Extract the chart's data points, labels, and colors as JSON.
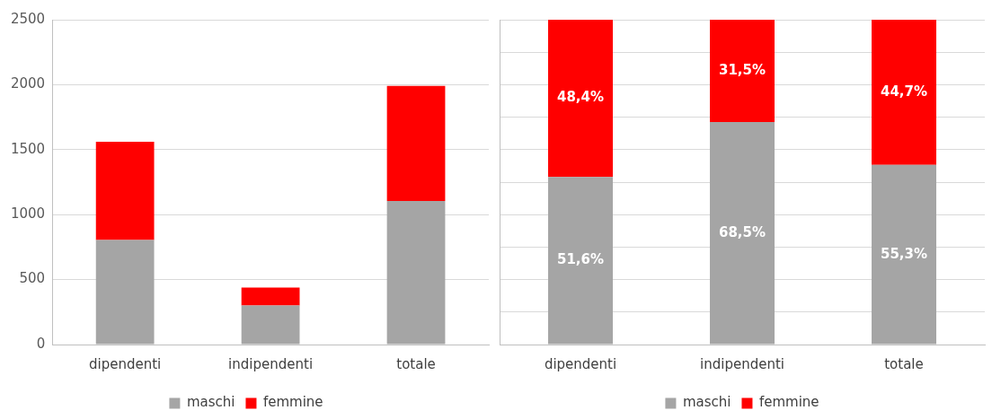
{
  "chart_data": [
    {
      "type": "bar",
      "categories": [
        "dipendenti",
        "indipendenti",
        "totale"
      ],
      "stacked": true,
      "series": [
        {
          "name": "maschi",
          "color": "#a5a5a5",
          "values": [
            805,
            300,
            1105
          ]
        },
        {
          "name": "femmine",
          "color": "#ff0000",
          "values": [
            755,
            138,
            885
          ]
        }
      ],
      "ylim": [
        0,
        2500
      ],
      "yticks": [
        0,
        500,
        1000,
        1500,
        2000,
        2500
      ],
      "grid": "y",
      "legend": "bottom"
    },
    {
      "type": "bar",
      "categories": [
        "dipendenti",
        "indipendenti",
        "totale"
      ],
      "stacked": true,
      "series": [
        {
          "name": "maschi",
          "color": "#a5a5a5",
          "values": [
            51.6,
            68.5,
            55.3
          ],
          "value_labels": [
            "51,6%",
            "68,5%",
            "55,3%"
          ]
        },
        {
          "name": "femmine",
          "color": "#ff0000",
          "values": [
            48.4,
            31.5,
            44.7
          ],
          "value_labels": [
            "48,4%",
            "31,5%",
            "44,7%"
          ]
        }
      ],
      "ylim": [
        0,
        100
      ],
      "yticks": [
        {
          "value": 0,
          "label": null
        },
        {
          "value": 10,
          "label": null
        },
        {
          "value": 20,
          "label": null
        },
        {
          "value": 30,
          "label": null
        },
        {
          "value": 40,
          "label": null
        },
        {
          "value": 50,
          "label": null
        },
        {
          "value": 60,
          "label": null
        },
        {
          "value": 70,
          "label": null
        },
        {
          "value": 80,
          "label": null
        },
        {
          "value": 90,
          "label": null
        },
        {
          "value": 100,
          "label": null
        }
      ],
      "grid": "y",
      "legend": "bottom",
      "tick_labels": "x"
    }
  ]
}
